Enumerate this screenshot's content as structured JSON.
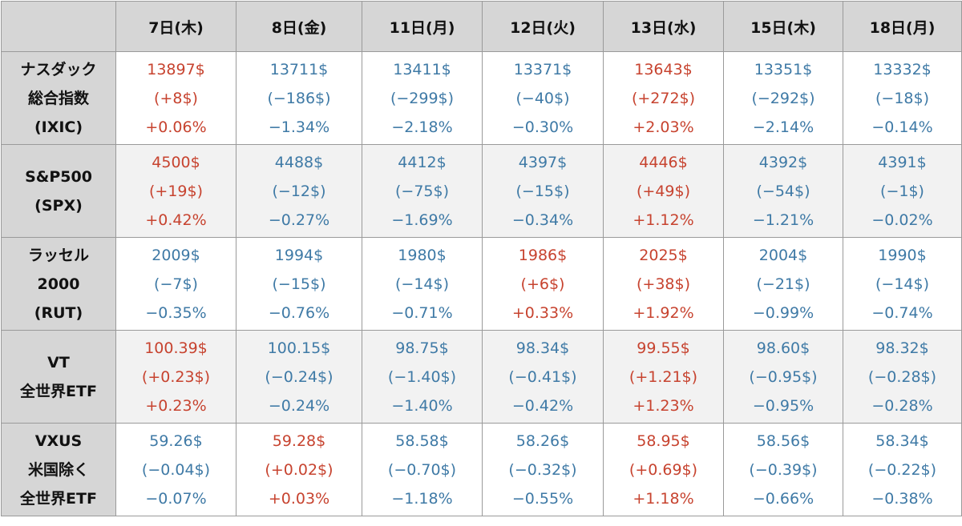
{
  "colors": {
    "up": "#c7432f",
    "down": "#3f7aa6",
    "header_bg": "#d6d6d6",
    "alt_row_bg": "#f2f2f2"
  },
  "columns": [
    "7日(木)",
    "8日(金)",
    "11日(月)",
    "12日(火)",
    "13日(水)",
    "15日(木)",
    "18日(月)"
  ],
  "rows": [
    {
      "label": [
        "ナスダック",
        "総合指数",
        "(IXIC)"
      ],
      "cells": [
        {
          "dir": "up",
          "price": "13897$",
          "change": "(+8$)",
          "pct": "+0.06%"
        },
        {
          "dir": "down",
          "price": "13711$",
          "change": "(−186$)",
          "pct": "−1.34%"
        },
        {
          "dir": "down",
          "price": "13411$",
          "change": "(−299$)",
          "pct": "−2.18%"
        },
        {
          "dir": "down",
          "price": "13371$",
          "change": "(−40$)",
          "pct": "−0.30%"
        },
        {
          "dir": "up",
          "price": "13643$",
          "change": "(+272$)",
          "pct": "+2.03%"
        },
        {
          "dir": "down",
          "price": "13351$",
          "change": "(−292$)",
          "pct": "−2.14%"
        },
        {
          "dir": "down",
          "price": "13332$",
          "change": "(−18$)",
          "pct": "−0.14%"
        }
      ]
    },
    {
      "label": [
        "S&P500",
        "(SPX)"
      ],
      "cells": [
        {
          "dir": "up",
          "price": "4500$",
          "change": "(+19$)",
          "pct": "+0.42%"
        },
        {
          "dir": "down",
          "price": "4488$",
          "change": "(−12$)",
          "pct": "−0.27%"
        },
        {
          "dir": "down",
          "price": "4412$",
          "change": "(−75$)",
          "pct": "−1.69%"
        },
        {
          "dir": "down",
          "price": "4397$",
          "change": "(−15$)",
          "pct": "−0.34%"
        },
        {
          "dir": "up",
          "price": "4446$",
          "change": "(+49$)",
          "pct": "+1.12%"
        },
        {
          "dir": "down",
          "price": "4392$",
          "change": "(−54$)",
          "pct": "−1.21%"
        },
        {
          "dir": "down",
          "price": "4391$",
          "change": "(−1$)",
          "pct": "−0.02%"
        }
      ]
    },
    {
      "label": [
        "ラッセル",
        "2000",
        "(RUT)"
      ],
      "cells": [
        {
          "dir": "down",
          "price": "2009$",
          "change": "(−7$)",
          "pct": "−0.35%"
        },
        {
          "dir": "down",
          "price": "1994$",
          "change": "(−15$)",
          "pct": "−0.76%"
        },
        {
          "dir": "down",
          "price": "1980$",
          "change": "(−14$)",
          "pct": "−0.71%"
        },
        {
          "dir": "up",
          "price": "1986$",
          "change": "(+6$)",
          "pct": "+0.33%"
        },
        {
          "dir": "up",
          "price": "2025$",
          "change": "(+38$)",
          "pct": "+1.92%"
        },
        {
          "dir": "down",
          "price": "2004$",
          "change": "(−21$)",
          "pct": "−0.99%"
        },
        {
          "dir": "down",
          "price": "1990$",
          "change": "(−14$)",
          "pct": "−0.74%"
        }
      ]
    },
    {
      "label": [
        "VT",
        "全世界ETF"
      ],
      "cells": [
        {
          "dir": "up",
          "price": "100.39$",
          "change": "(+0.23$)",
          "pct": "+0.23%"
        },
        {
          "dir": "down",
          "price": "100.15$",
          "change": "(−0.24$)",
          "pct": "−0.24%"
        },
        {
          "dir": "down",
          "price": "98.75$",
          "change": "(−1.40$)",
          "pct": "−1.40%"
        },
        {
          "dir": "down",
          "price": "98.34$",
          "change": "(−0.41$)",
          "pct": "−0.42%"
        },
        {
          "dir": "up",
          "price": "99.55$",
          "change": "(+1.21$)",
          "pct": "+1.23%"
        },
        {
          "dir": "down",
          "price": "98.60$",
          "change": "(−0.95$)",
          "pct": "−0.95%"
        },
        {
          "dir": "down",
          "price": "98.32$",
          "change": "(−0.28$)",
          "pct": "−0.28%"
        }
      ]
    },
    {
      "label": [
        "VXUS",
        "米国除く",
        "全世界ETF"
      ],
      "cells": [
        {
          "dir": "down",
          "price": "59.26$",
          "change": "(−0.04$)",
          "pct": "−0.07%"
        },
        {
          "dir": "up",
          "price": "59.28$",
          "change": "(+0.02$)",
          "pct": "+0.03%"
        },
        {
          "dir": "down",
          "price": "58.58$",
          "change": "(−0.70$)",
          "pct": "−1.18%"
        },
        {
          "dir": "down",
          "price": "58.26$",
          "change": "(−0.32$)",
          "pct": "−0.55%"
        },
        {
          "dir": "up",
          "price": "58.95$",
          "change": "(+0.69$)",
          "pct": "+1.18%"
        },
        {
          "dir": "down",
          "price": "58.56$",
          "change": "(−0.39$)",
          "pct": "−0.66%"
        },
        {
          "dir": "down",
          "price": "58.34$",
          "change": "(−0.22$)",
          "pct": "−0.38%"
        }
      ]
    }
  ]
}
